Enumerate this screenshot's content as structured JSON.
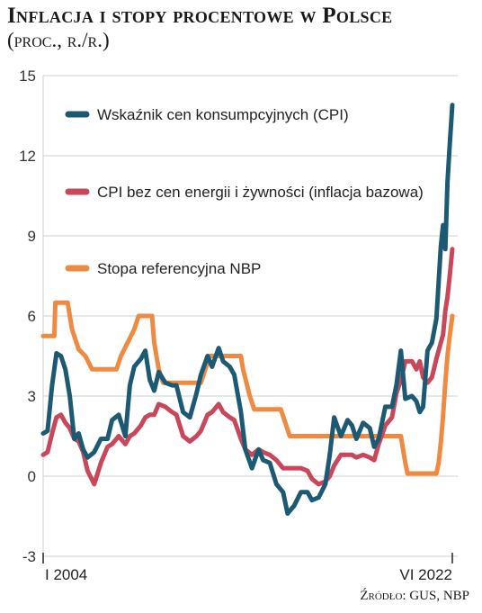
{
  "header": {
    "title": "Inflacja i stopy procentowe w Polsce",
    "subtitle": "(proc., r./r.)"
  },
  "footer": {
    "source_label": "Źródło:",
    "source_value": "GUS, NBP"
  },
  "chart_data": {
    "type": "line",
    "title": "Inflacja i stopy procentowe w Polsce",
    "subtitle": "(proc., r./r.)",
    "xlabel": "",
    "ylabel": "",
    "ylim": [
      -3,
      15
    ],
    "yticks": [
      -3,
      0,
      3,
      6,
      9,
      12,
      15
    ],
    "xlim": [
      2004.0,
      2022.417
    ],
    "x_tick_labels": [
      {
        "x": 2004.0,
        "label": "I 2004"
      },
      {
        "x": 2022.417,
        "label": "VI 2022"
      }
    ],
    "grid": "horizontal",
    "legend_position": "top-left",
    "series": [
      {
        "name": "Wskaźnik cen konsumpcyjnych (CPI)",
        "color": "#1b5a72",
        "points": [
          [
            2004.0,
            1.6
          ],
          [
            2004.2,
            1.7
          ],
          [
            2004.4,
            3.4
          ],
          [
            2004.6,
            4.6
          ],
          [
            2004.8,
            4.5
          ],
          [
            2005.0,
            4.0
          ],
          [
            2005.2,
            3.0
          ],
          [
            2005.4,
            1.4
          ],
          [
            2005.6,
            1.6
          ],
          [
            2005.8,
            1.0
          ],
          [
            2006.0,
            0.7
          ],
          [
            2006.3,
            0.9
          ],
          [
            2006.6,
            1.4
          ],
          [
            2006.9,
            1.4
          ],
          [
            2007.1,
            2.1
          ],
          [
            2007.4,
            2.3
          ],
          [
            2007.7,
            1.5
          ],
          [
            2007.9,
            3.4
          ],
          [
            2008.1,
            4.1
          ],
          [
            2008.4,
            4.4
          ],
          [
            2008.6,
            4.7
          ],
          [
            2008.8,
            3.6
          ],
          [
            2009.0,
            3.2
          ],
          [
            2009.2,
            3.9
          ],
          [
            2009.5,
            3.5
          ],
          [
            2009.8,
            3.4
          ],
          [
            2010.0,
            3.4
          ],
          [
            2010.3,
            2.4
          ],
          [
            2010.6,
            2.2
          ],
          [
            2010.9,
            3.1
          ],
          [
            2011.1,
            3.8
          ],
          [
            2011.4,
            4.5
          ],
          [
            2011.6,
            4.1
          ],
          [
            2011.9,
            4.8
          ],
          [
            2012.1,
            4.3
          ],
          [
            2012.4,
            4.1
          ],
          [
            2012.6,
            3.8
          ],
          [
            2012.9,
            2.4
          ],
          [
            2013.1,
            1.0
          ],
          [
            2013.4,
            0.3
          ],
          [
            2013.7,
            1.0
          ],
          [
            2013.9,
            0.6
          ],
          [
            2014.2,
            0.5
          ],
          [
            2014.5,
            -0.3
          ],
          [
            2014.8,
            -0.6
          ],
          [
            2015.0,
            -1.4
          ],
          [
            2015.3,
            -1.1
          ],
          [
            2015.6,
            -0.6
          ],
          [
            2015.9,
            -0.6
          ],
          [
            2016.1,
            -0.9
          ],
          [
            2016.4,
            -0.8
          ],
          [
            2016.7,
            -0.3
          ],
          [
            2016.9,
            0.8
          ],
          [
            2017.1,
            2.2
          ],
          [
            2017.4,
            1.5
          ],
          [
            2017.7,
            2.1
          ],
          [
            2017.9,
            1.9
          ],
          [
            2018.1,
            1.4
          ],
          [
            2018.4,
            2.0
          ],
          [
            2018.7,
            1.8
          ],
          [
            2018.9,
            1.1
          ],
          [
            2019.1,
            1.4
          ],
          [
            2019.4,
            2.6
          ],
          [
            2019.7,
            2.6
          ],
          [
            2019.9,
            3.4
          ],
          [
            2020.1,
            4.7
          ],
          [
            2020.3,
            2.9
          ],
          [
            2020.6,
            3.0
          ],
          [
            2020.8,
            2.8
          ],
          [
            2020.95,
            2.4
          ],
          [
            2021.1,
            2.6
          ],
          [
            2021.3,
            4.7
          ],
          [
            2021.5,
            5.0
          ],
          [
            2021.7,
            5.9
          ],
          [
            2021.9,
            8.6
          ],
          [
            2022.0,
            9.4
          ],
          [
            2022.1,
            8.5
          ],
          [
            2022.2,
            11.0
          ],
          [
            2022.3,
            12.4
          ],
          [
            2022.417,
            13.9
          ]
        ]
      },
      {
        "name": "CPI bez cen energii i żywności (inflacja bazowa)",
        "color": "#c8475a",
        "points": [
          [
            2004.0,
            0.8
          ],
          [
            2004.2,
            0.9
          ],
          [
            2004.4,
            1.6
          ],
          [
            2004.6,
            2.2
          ],
          [
            2004.8,
            2.3
          ],
          [
            2005.0,
            2.0
          ],
          [
            2005.2,
            1.8
          ],
          [
            2005.4,
            1.4
          ],
          [
            2005.6,
            1.3
          ],
          [
            2005.8,
            0.9
          ],
          [
            2006.0,
            0.2
          ],
          [
            2006.3,
            -0.3
          ],
          [
            2006.6,
            0.5
          ],
          [
            2006.9,
            1.1
          ],
          [
            2007.1,
            1.2
          ],
          [
            2007.4,
            1.5
          ],
          [
            2007.7,
            1.2
          ],
          [
            2007.9,
            1.5
          ],
          [
            2008.1,
            1.6
          ],
          [
            2008.4,
            1.9
          ],
          [
            2008.6,
            2.2
          ],
          [
            2008.8,
            2.3
          ],
          [
            2009.0,
            2.3
          ],
          [
            2009.2,
            2.7
          ],
          [
            2009.5,
            2.6
          ],
          [
            2009.8,
            2.4
          ],
          [
            2010.0,
            2.3
          ],
          [
            2010.3,
            1.5
          ],
          [
            2010.6,
            1.3
          ],
          [
            2010.9,
            1.5
          ],
          [
            2011.1,
            1.7
          ],
          [
            2011.4,
            2.3
          ],
          [
            2011.6,
            2.4
          ],
          [
            2011.9,
            2.7
          ],
          [
            2012.1,
            2.4
          ],
          [
            2012.4,
            2.2
          ],
          [
            2012.6,
            2.1
          ],
          [
            2012.9,
            1.4
          ],
          [
            2013.1,
            1.0
          ],
          [
            2013.4,
            0.8
          ],
          [
            2013.7,
            1.0
          ],
          [
            2013.9,
            0.9
          ],
          [
            2014.2,
            0.8
          ],
          [
            2014.5,
            0.6
          ],
          [
            2014.8,
            0.3
          ],
          [
            2015.0,
            0.3
          ],
          [
            2015.3,
            0.3
          ],
          [
            2015.6,
            0.3
          ],
          [
            2015.9,
            0.2
          ],
          [
            2016.1,
            -0.1
          ],
          [
            2016.4,
            -0.3
          ],
          [
            2016.7,
            -0.2
          ],
          [
            2016.9,
            0.0
          ],
          [
            2017.1,
            0.4
          ],
          [
            2017.4,
            0.8
          ],
          [
            2017.7,
            0.8
          ],
          [
            2017.9,
            0.8
          ],
          [
            2018.1,
            0.7
          ],
          [
            2018.4,
            0.8
          ],
          [
            2018.7,
            0.7
          ],
          [
            2018.9,
            0.6
          ],
          [
            2019.1,
            1.2
          ],
          [
            2019.4,
            1.9
          ],
          [
            2019.7,
            2.2
          ],
          [
            2019.9,
            3.1
          ],
          [
            2020.1,
            3.6
          ],
          [
            2020.3,
            4.3
          ],
          [
            2020.6,
            4.3
          ],
          [
            2020.8,
            4.0
          ],
          [
            2020.95,
            4.3
          ],
          [
            2021.1,
            3.7
          ],
          [
            2021.3,
            3.5
          ],
          [
            2021.5,
            3.7
          ],
          [
            2021.7,
            4.4
          ],
          [
            2021.9,
            5.0
          ],
          [
            2022.0,
            5.3
          ],
          [
            2022.1,
            6.2
          ],
          [
            2022.2,
            6.7
          ],
          [
            2022.3,
            7.5
          ],
          [
            2022.417,
            8.5
          ]
        ]
      },
      {
        "name": "Stopa referencyjna NBP",
        "color": "#ef8a42",
        "points": [
          [
            2004.0,
            5.25
          ],
          [
            2004.5,
            5.25
          ],
          [
            2004.55,
            6.5
          ],
          [
            2005.1,
            6.5
          ],
          [
            2005.3,
            5.5
          ],
          [
            2005.6,
            4.75
          ],
          [
            2005.9,
            4.5
          ],
          [
            2006.2,
            4.0
          ],
          [
            2007.3,
            4.0
          ],
          [
            2007.5,
            4.5
          ],
          [
            2007.8,
            5.0
          ],
          [
            2008.1,
            5.5
          ],
          [
            2008.3,
            6.0
          ],
          [
            2008.9,
            6.0
          ],
          [
            2009.0,
            5.0
          ],
          [
            2009.2,
            4.0
          ],
          [
            2009.4,
            3.5
          ],
          [
            2011.1,
            3.5
          ],
          [
            2011.3,
            4.0
          ],
          [
            2011.5,
            4.5
          ],
          [
            2012.9,
            4.5
          ],
          [
            2013.0,
            4.0
          ],
          [
            2013.3,
            3.0
          ],
          [
            2013.5,
            2.5
          ],
          [
            2014.7,
            2.5
          ],
          [
            2014.9,
            2.0
          ],
          [
            2015.1,
            1.5
          ],
          [
            2020.1,
            1.5
          ],
          [
            2020.2,
            1.0
          ],
          [
            2020.3,
            0.5
          ],
          [
            2020.4,
            0.1
          ],
          [
            2021.7,
            0.1
          ],
          [
            2021.8,
            0.5
          ],
          [
            2021.9,
            1.25
          ],
          [
            2022.0,
            2.25
          ],
          [
            2022.1,
            3.5
          ],
          [
            2022.2,
            4.5
          ],
          [
            2022.3,
            5.25
          ],
          [
            2022.417,
            6.0
          ]
        ]
      }
    ]
  }
}
